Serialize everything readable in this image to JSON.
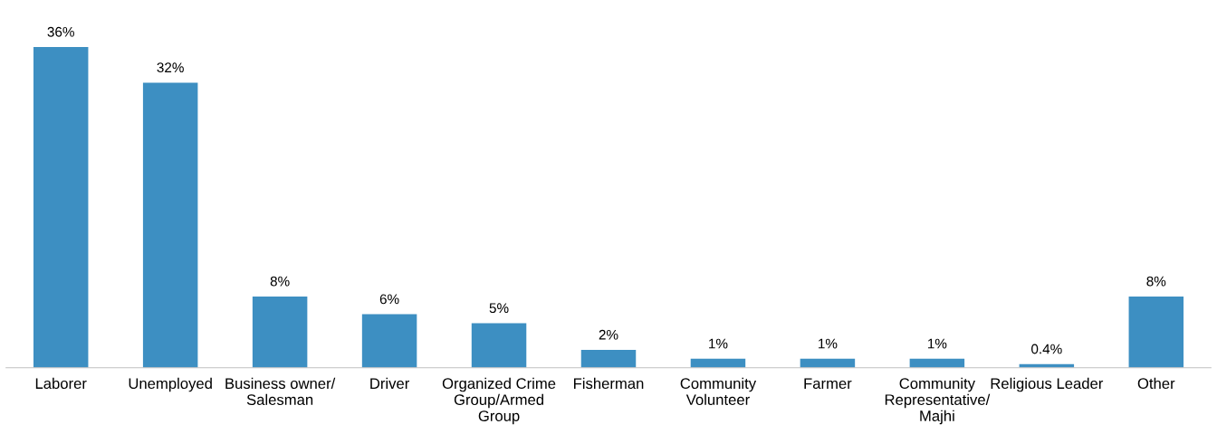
{
  "chart_data": {
    "type": "bar",
    "categories": [
      "Laborer",
      "Unemployed",
      "Business owner/\nSalesman",
      "Driver",
      "Organized Crime\nGroup/Armed\nGroup",
      "Fisherman",
      "Community\nVolunteer",
      "Farmer",
      "Community\nRepresentative/\nMajhi",
      "Religious Leader",
      "Other"
    ],
    "values": [
      36,
      32,
      8,
      6,
      5,
      2,
      1,
      1,
      1,
      0.4,
      8
    ],
    "value_labels": [
      "36%",
      "32%",
      "8%",
      "6%",
      "5%",
      "2%",
      "1%",
      "1%",
      "1%",
      "0.4%",
      "8%"
    ],
    "color": "#3d8fc2",
    "grid": false,
    "legend": false
  }
}
